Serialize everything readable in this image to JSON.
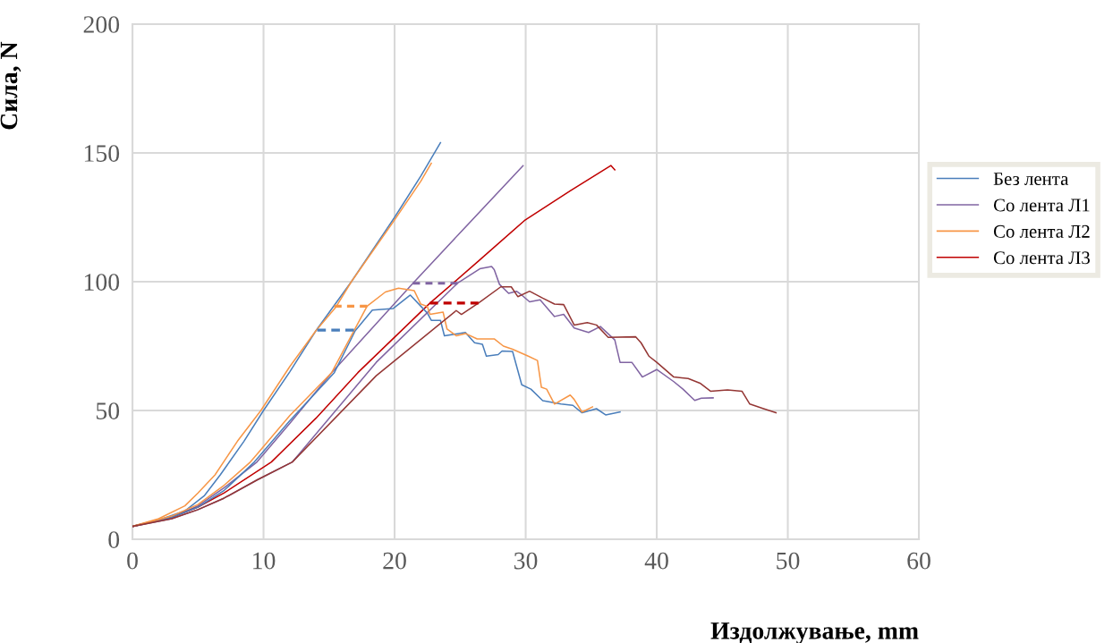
{
  "chart_data": {
    "type": "line",
    "xlabel": "Издолжување, mm",
    "ylabel": "Сила, N",
    "xlim": [
      0,
      60
    ],
    "xticks": [
      0,
      10,
      20,
      30,
      40,
      50,
      60
    ],
    "ylim": [
      0,
      200
    ],
    "yticks": [
      0,
      50,
      100,
      150,
      200
    ],
    "grid": true,
    "legend": "right",
    "marker": "none",
    "line_style": "solid",
    "series": [
      {
        "name": "Без лента",
        "color": "#4a7ebb",
        "x": [
          0,
          2,
          4,
          5.5,
          6.7,
          8.5,
          10,
          12,
          14,
          16.7,
          20,
          22,
          23.5
        ],
        "values": [
          5,
          7.5,
          11,
          17,
          25,
          38,
          50,
          65,
          81,
          100,
          125,
          141,
          154
        ]
      },
      {
        "name": "Со лента Л1",
        "color": "#8064a2",
        "x": [
          0,
          3,
          5,
          7,
          9.5,
          12,
          15.2,
          21.4,
          25,
          29.8
        ],
        "values": [
          5,
          8.5,
          13,
          20,
          30,
          45,
          64.7,
          99.4,
          119,
          145
        ]
      },
      {
        "name": "Со лента Л2",
        "color": "#f79646",
        "x": [
          0,
          2,
          4,
          5,
          6.3,
          8,
          9.8,
          12,
          14,
          15.5,
          16.7,
          20,
          22,
          22.8
        ],
        "values": [
          5,
          8,
          13,
          18,
          25,
          38,
          50,
          67,
          81,
          90,
          100,
          124,
          139,
          146
        ]
      },
      {
        "name": "Со лента Л3",
        "color": "#c00000",
        "x": [
          0,
          3,
          5,
          7,
          10.6,
          14,
          17.2,
          22.7,
          26.4,
          29.9,
          33.4,
          36.5,
          36.8
        ],
        "values": [
          5,
          8.5,
          12.5,
          18,
          30,
          47,
          64.7,
          91.7,
          108,
          123.7,
          135.3,
          145.1,
          143.4
        ]
      },
      {
        "color": "#4a7ebb",
        "x": [
          0,
          3,
          5,
          7,
          9.3,
          12,
          15.4,
          17,
          18.3,
          19.9,
          21.2,
          22.5,
          22.8,
          23.5,
          23.8,
          25.4,
          26.1,
          26.7,
          27,
          27.9,
          28.2,
          29,
          29.7,
          30.4,
          31.3,
          32.7,
          33.6,
          34.3,
          35.4,
          36.1,
          37.2
        ],
        "values": [
          5,
          8.5,
          12.5,
          19,
          30,
          46,
          64.7,
          81,
          89,
          89.6,
          94.8,
          87.8,
          85,
          85,
          79,
          80.3,
          76.3,
          75.7,
          71.1,
          71.7,
          73.1,
          72.9,
          60,
          58.3,
          53.8,
          52.5,
          52,
          49.1,
          50.7,
          48.3,
          49.4
        ]
      },
      {
        "color": "#8064a2",
        "x": [
          0,
          3,
          5,
          7,
          9.5,
          12.2,
          18.6,
          24.8,
          26.5,
          27.4,
          27.6,
          28,
          28.7,
          29.3,
          29.7,
          30.3,
          31.1,
          32.2,
          32.9,
          33.7,
          34.8,
          35.7,
          36.8,
          37.2,
          38.1,
          38.9,
          40,
          41.3,
          42,
          42.9,
          43.4,
          44.3
        ],
        "values": [
          5,
          8,
          11.5,
          16,
          23,
          30,
          68.7,
          99.4,
          105,
          105.9,
          104.7,
          99,
          95.5,
          96.3,
          94.8,
          92.2,
          93,
          86.5,
          87.3,
          82,
          80.3,
          82.6,
          77.4,
          68.7,
          68.7,
          63,
          65.9,
          61.2,
          58.3,
          53.9,
          54.8,
          54.9
        ]
      },
      {
        "color": "#f79646",
        "x": [
          0,
          3,
          5,
          7,
          9,
          12,
          15.2,
          17.9,
          19.3,
          20.3,
          21.5,
          22,
          22.5,
          22.7,
          23.7,
          24,
          24.7,
          25.4,
          26.3,
          27.6,
          28.3,
          29,
          30.2,
          30.9,
          31.2,
          31.6,
          32.2,
          33.4,
          33.7,
          34.3,
          35.1
        ],
        "values": [
          5,
          9,
          13.5,
          21,
          30,
          48,
          64.7,
          90.5,
          96,
          97.5,
          96.5,
          91.3,
          90.4,
          87.3,
          88.2,
          81.6,
          79,
          79.9,
          77.8,
          77.8,
          75,
          73.8,
          71.1,
          69.4,
          59,
          58.3,
          52.5,
          56,
          54.3,
          49.4,
          51.4
        ]
      },
      {
        "color": "#943634",
        "x": [
          0,
          3,
          5,
          7,
          9.5,
          12.2,
          18.6,
          24.7,
          25.1,
          26.4,
          28.1,
          28.9,
          29.4,
          30.3,
          31.3,
          32.2,
          32.9,
          33.7,
          34.7,
          35.4,
          36.3,
          38.4,
          38.8,
          39.4,
          40,
          41.3,
          42.4,
          43.3,
          44.1,
          45.4,
          46.5,
          47.1,
          48.1,
          49.1
        ],
        "values": [
          5,
          8,
          11.5,
          16,
          23,
          30,
          63.5,
          88.8,
          87.3,
          91.7,
          98,
          98,
          94.2,
          96.3,
          93.6,
          91.3,
          91.1,
          83.2,
          84.1,
          83.2,
          78.4,
          78.6,
          76.3,
          71.1,
          68.7,
          63,
          62.4,
          60.6,
          57.5,
          58,
          57.5,
          52.5,
          50.8,
          49.1
        ]
      },
      {
        "color": "#4a7ebb",
        "line_style": "dashed",
        "x": [
          14.1,
          16.9
        ],
        "values": [
          81.2,
          81.2
        ]
      },
      {
        "color": "#f79646",
        "line_style": "dashed",
        "x": [
          15.4,
          17.9
        ],
        "values": [
          90.5,
          90.5
        ]
      },
      {
        "color": "#8064a2",
        "line_style": "dashed",
        "x": [
          21.4,
          24.8
        ],
        "values": [
          99.4,
          99.4
        ]
      },
      {
        "color": "#c00000",
        "line_style": "dashed",
        "x": [
          22.7,
          26.4
        ],
        "values": [
          91.7,
          91.7
        ]
      }
    ]
  }
}
